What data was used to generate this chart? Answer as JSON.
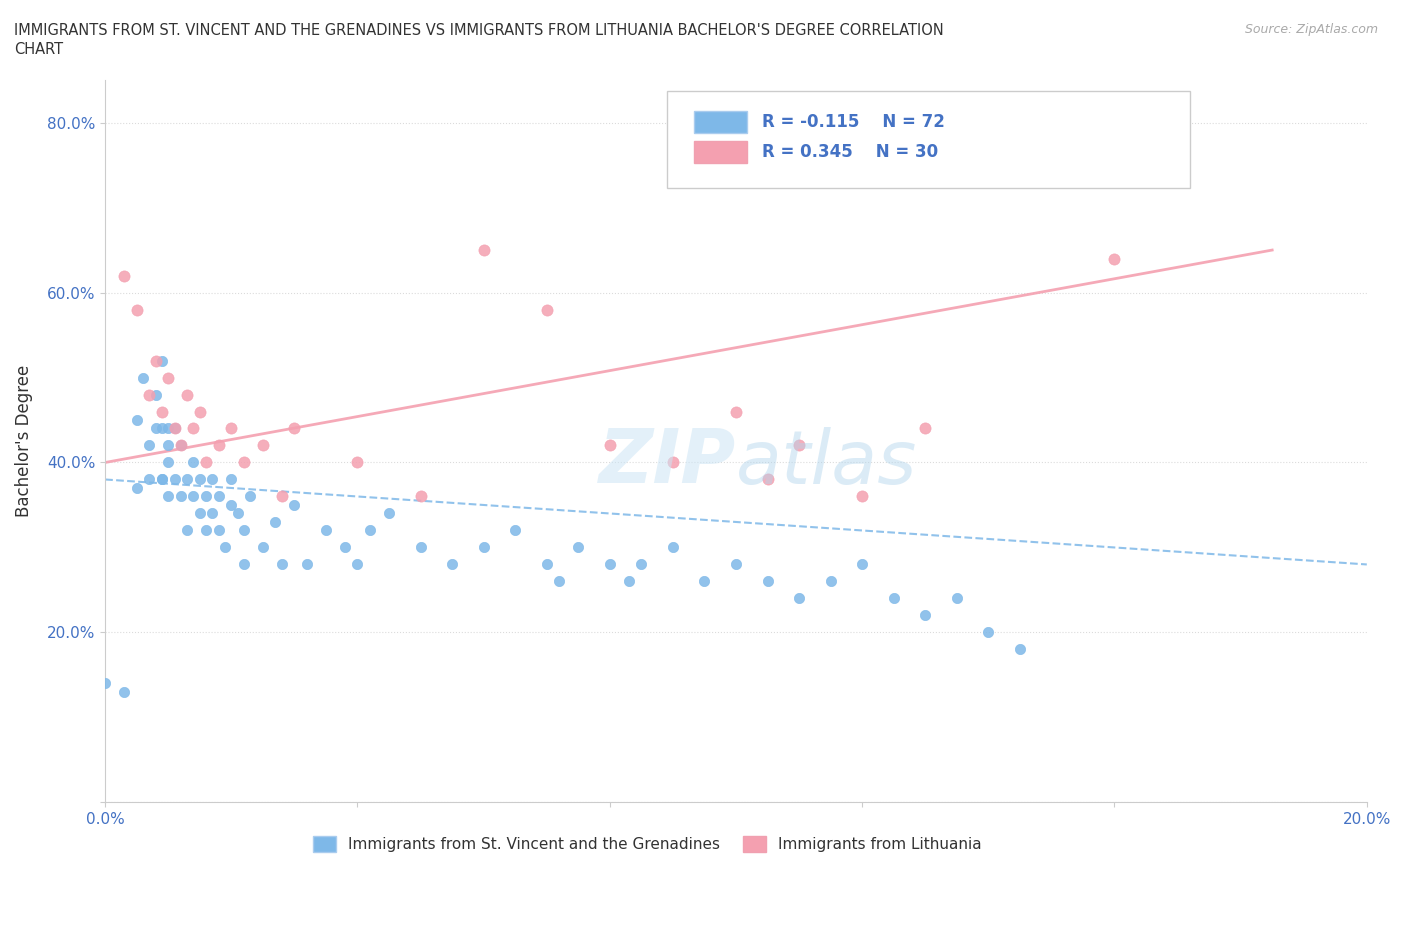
{
  "title_line1": "IMMIGRANTS FROM ST. VINCENT AND THE GRENADINES VS IMMIGRANTS FROM LITHUANIA BACHELOR'S DEGREE CORRELATION",
  "title_line2": "CHART",
  "source": "Source: ZipAtlas.com",
  "ylabel": "Bachelor's Degree",
  "xmin": 0.0,
  "xmax": 0.2,
  "ymin": 0.0,
  "ymax": 0.85,
  "legend_blue_label": "Immigrants from St. Vincent and the Grenadines",
  "legend_pink_label": "Immigrants from Lithuania",
  "r_blue": -0.115,
  "n_blue": 72,
  "r_pink": 0.345,
  "n_pink": 30,
  "blue_color": "#7eb8e8",
  "pink_color": "#f4a0b0",
  "blue_scatter_x": [
    0.0,
    0.003,
    0.005,
    0.005,
    0.006,
    0.007,
    0.007,
    0.008,
    0.008,
    0.009,
    0.009,
    0.009,
    0.009,
    0.01,
    0.01,
    0.01,
    0.01,
    0.011,
    0.011,
    0.012,
    0.012,
    0.013,
    0.013,
    0.014,
    0.014,
    0.015,
    0.015,
    0.016,
    0.016,
    0.017,
    0.017,
    0.018,
    0.018,
    0.019,
    0.02,
    0.02,
    0.021,
    0.022,
    0.022,
    0.023,
    0.025,
    0.027,
    0.028,
    0.03,
    0.032,
    0.035,
    0.038,
    0.04,
    0.042,
    0.045,
    0.05,
    0.055,
    0.06,
    0.065,
    0.07,
    0.072,
    0.075,
    0.08,
    0.083,
    0.085,
    0.09,
    0.095,
    0.1,
    0.105,
    0.11,
    0.115,
    0.12,
    0.125,
    0.13,
    0.135,
    0.14,
    0.145
  ],
  "blue_scatter_y": [
    0.14,
    0.13,
    0.37,
    0.45,
    0.5,
    0.42,
    0.38,
    0.44,
    0.48,
    0.38,
    0.44,
    0.52,
    0.38,
    0.44,
    0.4,
    0.36,
    0.42,
    0.38,
    0.44,
    0.36,
    0.42,
    0.38,
    0.32,
    0.36,
    0.4,
    0.34,
    0.38,
    0.36,
    0.32,
    0.34,
    0.38,
    0.32,
    0.36,
    0.3,
    0.35,
    0.38,
    0.34,
    0.32,
    0.28,
    0.36,
    0.3,
    0.33,
    0.28,
    0.35,
    0.28,
    0.32,
    0.3,
    0.28,
    0.32,
    0.34,
    0.3,
    0.28,
    0.3,
    0.32,
    0.28,
    0.26,
    0.3,
    0.28,
    0.26,
    0.28,
    0.3,
    0.26,
    0.28,
    0.26,
    0.24,
    0.26,
    0.28,
    0.24,
    0.22,
    0.24,
    0.2,
    0.18
  ],
  "pink_scatter_x": [
    0.003,
    0.005,
    0.007,
    0.008,
    0.009,
    0.01,
    0.011,
    0.012,
    0.013,
    0.014,
    0.015,
    0.016,
    0.018,
    0.02,
    0.022,
    0.025,
    0.028,
    0.03,
    0.04,
    0.05,
    0.06,
    0.07,
    0.08,
    0.09,
    0.1,
    0.105,
    0.11,
    0.12,
    0.13,
    0.16
  ],
  "pink_scatter_y": [
    0.62,
    0.58,
    0.48,
    0.52,
    0.46,
    0.5,
    0.44,
    0.42,
    0.48,
    0.44,
    0.46,
    0.4,
    0.42,
    0.44,
    0.4,
    0.42,
    0.36,
    0.44,
    0.4,
    0.36,
    0.65,
    0.58,
    0.42,
    0.4,
    0.46,
    0.38,
    0.42,
    0.36,
    0.44,
    0.64
  ],
  "blue_trend_x": [
    0.0,
    0.2
  ],
  "blue_trend_y": [
    0.38,
    0.28
  ],
  "pink_trend_x": [
    0.0,
    0.185
  ],
  "pink_trend_y": [
    0.4,
    0.65
  ]
}
